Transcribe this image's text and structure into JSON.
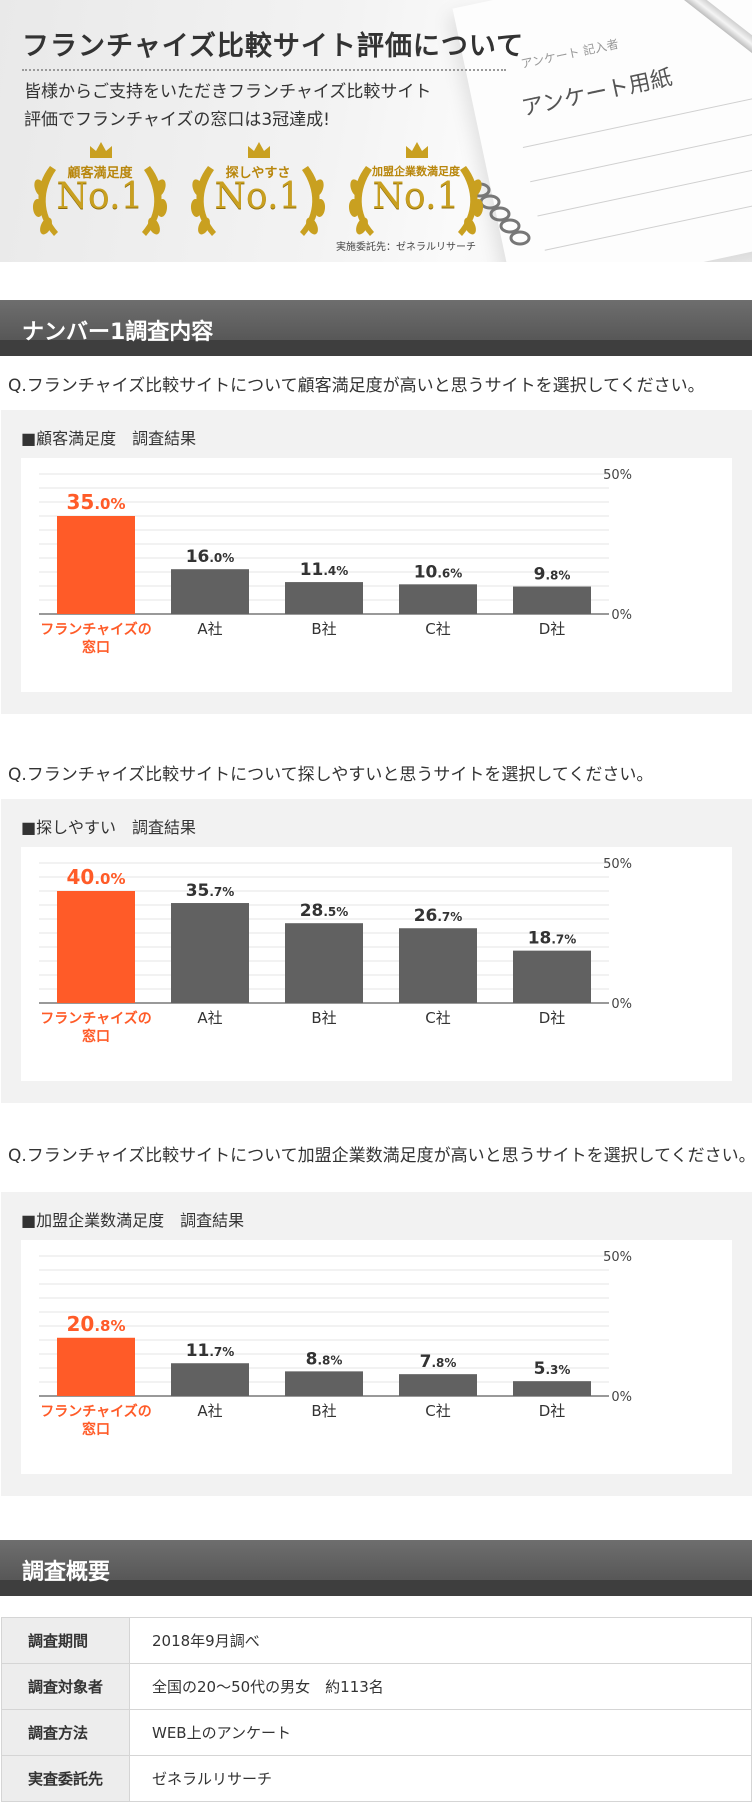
{
  "hero": {
    "title": "フランチャイズ比較サイト評価について",
    "description_line1": "皆様からご支持をいただきフランチャイズ比較サイト",
    "description_line2": "評価でフランチャイズの窓口は3冠達成!",
    "paper_title": "アンケート用紙",
    "paper_note": "アンケート 記入者",
    "awards": [
      {
        "label": "顧客満足度",
        "rank": "No.1"
      },
      {
        "label": "探しやすさ",
        "rank": "No.1"
      },
      {
        "label": "加盟企業数満足度",
        "rank": "No.1"
      }
    ],
    "credit": "実施委託先：ゼネラルリサーチ",
    "gold_color": "#c9a020"
  },
  "section1": {
    "title": "ナンバー1調査内容"
  },
  "section2": {
    "title": "調査概要"
  },
  "colors": {
    "highlight": "#ff5b28",
    "bar": "#616161",
    "axis": "#999999",
    "grid": "#e6e6e6"
  },
  "chart_data": [
    {
      "type": "bar",
      "question": "Q.フランチャイズ比較サイトについて顧客満足度が高いと思うサイトを選択してください。",
      "title": "■顧客満足度　調査結果",
      "categories": [
        "フランチャイズの窓口",
        "A社",
        "B社",
        "C社",
        "D社"
      ],
      "category_lines": [
        [
          "フランチャイズの",
          "窓口"
        ],
        [
          "A社"
        ],
        [
          "B社"
        ],
        [
          "C社"
        ],
        [
          "D社"
        ]
      ],
      "values": [
        35.0,
        16.0,
        11.4,
        10.6,
        9.8
      ],
      "value_main": [
        "35",
        "16",
        "11",
        "10",
        "9"
      ],
      "value_dec": [
        ".0%",
        ".0%",
        ".4%",
        ".6%",
        ".8%"
      ],
      "ylim": [
        0,
        50
      ],
      "ytick_labels": [
        "50%",
        "0%"
      ],
      "highlight_index": 0,
      "grid": true
    },
    {
      "type": "bar",
      "question": "Q.フランチャイズ比較サイトについて探しやすいと思うサイトを選択してください。",
      "title": "■探しやすい　調査結果",
      "categories": [
        "フランチャイズの窓口",
        "A社",
        "B社",
        "C社",
        "D社"
      ],
      "category_lines": [
        [
          "フランチャイズの",
          "窓口"
        ],
        [
          "A社"
        ],
        [
          "B社"
        ],
        [
          "C社"
        ],
        [
          "D社"
        ]
      ],
      "values": [
        40.0,
        35.7,
        28.5,
        26.7,
        18.7
      ],
      "value_main": [
        "40",
        "35",
        "28",
        "26",
        "18"
      ],
      "value_dec": [
        ".0%",
        ".7%",
        ".5%",
        ".7%",
        ".7%"
      ],
      "ylim": [
        0,
        50
      ],
      "ytick_labels": [
        "50%",
        "0%"
      ],
      "highlight_index": 0,
      "grid": true
    },
    {
      "type": "bar",
      "question": "Q.フランチャイズ比較サイトについて加盟企業数満足度が高いと思うサイトを選択してください。",
      "title": "■加盟企業数満足度　調査結果",
      "categories": [
        "フランチャイズの窓口",
        "A社",
        "B社",
        "C社",
        "D社"
      ],
      "category_lines": [
        [
          "フランチャイズの",
          "窓口"
        ],
        [
          "A社"
        ],
        [
          "B社"
        ],
        [
          "C社"
        ],
        [
          "D社"
        ]
      ],
      "values": [
        20.8,
        11.7,
        8.8,
        7.8,
        5.3
      ],
      "value_main": [
        "20",
        "11",
        "8",
        "7",
        "5"
      ],
      "value_dec": [
        ".8%",
        ".7%",
        ".8%",
        ".8%",
        ".3%"
      ],
      "ylim": [
        0,
        50
      ],
      "ytick_labels": [
        "50%",
        "0%"
      ],
      "highlight_index": 0,
      "grid": true
    }
  ],
  "summary": {
    "rows": [
      {
        "label": "調査期間",
        "value": "2018年9月調べ"
      },
      {
        "label": "調査対象者",
        "value": "全国の20〜50代の男女　約113名"
      },
      {
        "label": "調査方法",
        "value": "WEB上のアンケート"
      },
      {
        "label": "実査委託先",
        "value": "ゼネラルリサーチ"
      }
    ]
  }
}
